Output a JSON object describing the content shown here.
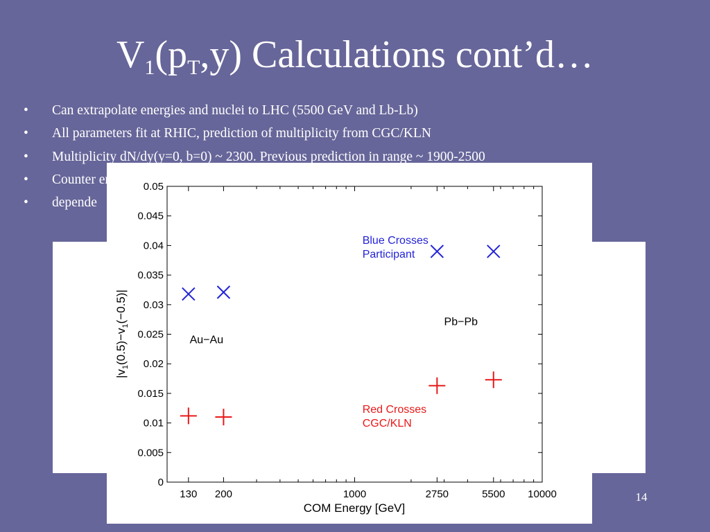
{
  "slide": {
    "title_main": "V",
    "title_sub1": "1",
    "title_mid": "(p",
    "title_sub2": "T",
    "title_end": ",y) Calculations cont’d…",
    "bullets": [
      "Can extrapolate energies and nuclei to LHC (5500 GeV and Lb-Lb)",
      "All parameters fit at RHIC, prediction of multiplicity from CGC/KLN",
      "Multiplicity  dN/dy(y=0, b=0) ~ 2300.  Previous prediction in range ~ 1900-2500",
      "Counter energy",
      "depende"
    ],
    "page_number": "14"
  },
  "colors": {
    "background": "#67669a",
    "blue_series": "#2323d8",
    "red_series": "#e81818"
  },
  "chart_data": {
    "type": "scatter",
    "xscale": "log",
    "xlim": [
      100,
      10000
    ],
    "ylim": [
      0,
      0.05
    ],
    "xticks": [
      "130",
      "200",
      "1000",
      "2750",
      "5500",
      "10000"
    ],
    "yticks": [
      "0",
      "0.005",
      "0.01",
      "0.015",
      "0.02",
      "0.025",
      "0.03",
      "0.035",
      "0.04",
      "0.045",
      "0.05"
    ],
    "xlabel": "COM Energy [GeV]",
    "ylabel_parts": [
      "|v",
      "1",
      "(0.5)−v",
      "1",
      "(−0.5)|"
    ],
    "ylabel_small": "v1",
    "series": [
      {
        "marker": "x",
        "color": "#2323d8",
        "x": [
          130,
          200,
          2750,
          5500
        ],
        "y": [
          0.0318,
          0.0321,
          0.039,
          0.039
        ]
      },
      {
        "marker": "+",
        "color": "#e81818",
        "x": [
          130,
          200,
          2750,
          5500
        ],
        "y": [
          0.0112,
          0.011,
          0.0163,
          0.0173
        ]
      }
    ],
    "annotations": [
      {
        "lines": [
          "Blue Crosses",
          "Participant"
        ],
        "color": "#2323d8",
        "x": 1100,
        "y": 0.0403
      },
      {
        "lines": [
          "Au−Au"
        ],
        "color": "#000000",
        "x": 132,
        "y": 0.0235
      },
      {
        "lines": [
          "Pb−Pb"
        ],
        "color": "#000000",
        "x": 3000,
        "y": 0.0265
      },
      {
        "lines": [
          "Red Crosses",
          "CGC/KLN"
        ],
        "color": "#e81818",
        "x": 1100,
        "y": 0.0117
      }
    ]
  }
}
